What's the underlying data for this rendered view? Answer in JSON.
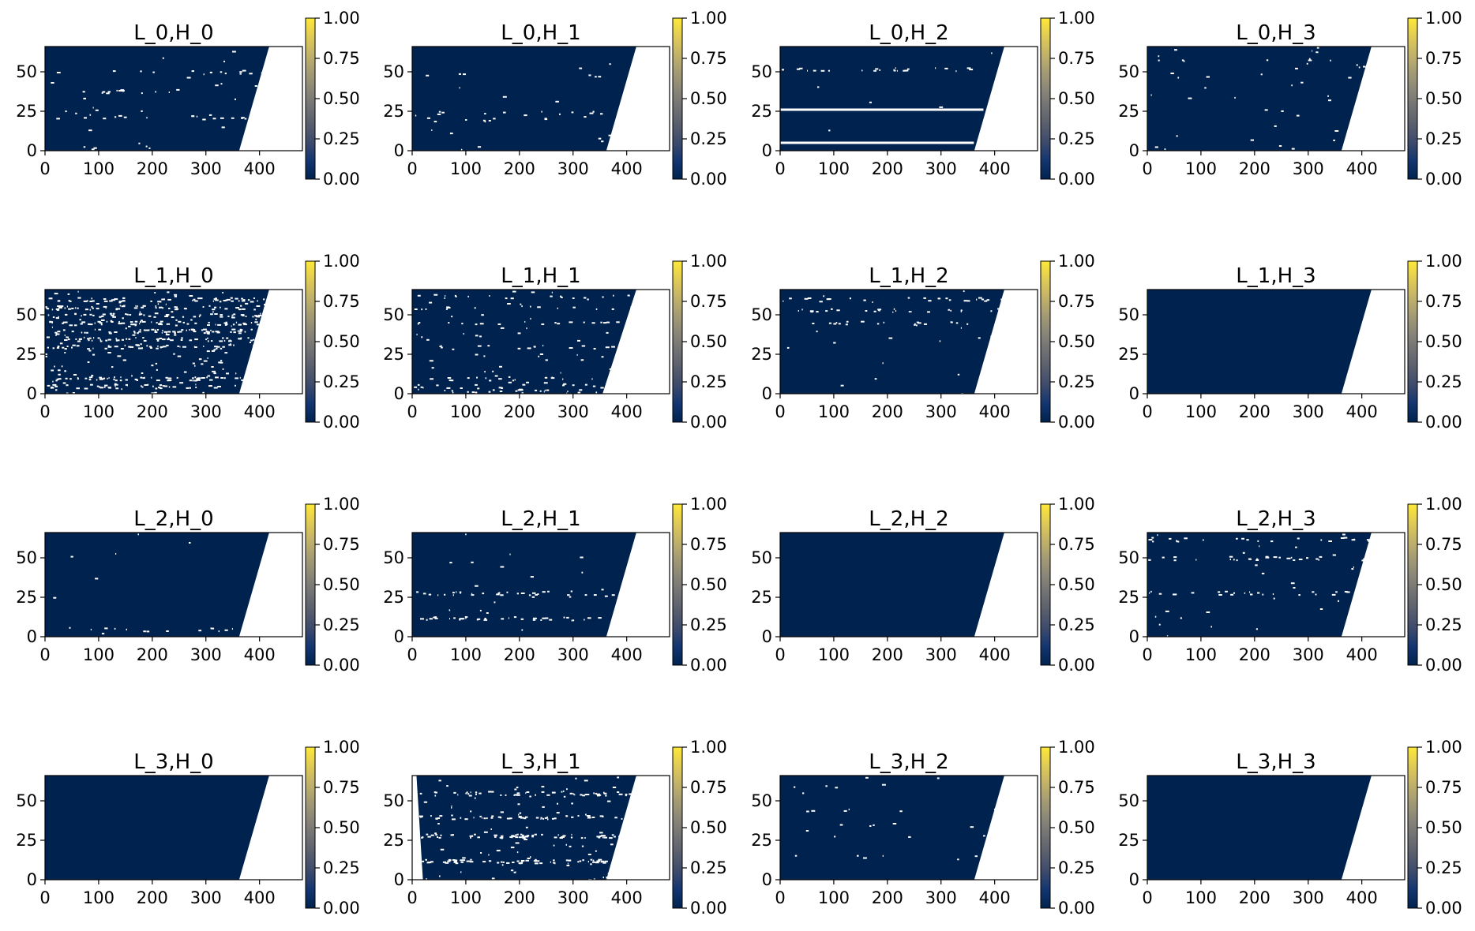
{
  "figure": {
    "description_type": "attention-heatmap-grid",
    "rows": 4,
    "cols": 4,
    "colormap": "cividis"
  },
  "colors": {
    "background_fill": "#00224e",
    "masked": "#ffffff",
    "speck": "#ffffff",
    "colorbar_stops": [
      "#00224e",
      "#123570",
      "#3b496c",
      "#575d6d",
      "#707173",
      "#8a8678",
      "#a59c74",
      "#c3b369",
      "#e1cc55",
      "#fee838"
    ]
  },
  "chart_data": [
    {
      "type": "heatmap",
      "title": "L_0,H_0",
      "xlim": [
        0,
        480
      ],
      "ylim": [
        0,
        66
      ],
      "xticks": [
        "0",
        "100",
        "200",
        "300",
        "400"
      ],
      "yticks": [
        "0",
        "25",
        "50"
      ],
      "colorbar": {
        "range": [
          0.0,
          1.0
        ],
        "ticks": [
          "0.00",
          "0.25",
          "0.50",
          "0.75",
          "1.00"
        ]
      },
      "mask": {
        "bottom_end": 362,
        "top_end": 418
      },
      "density": 0.05,
      "bands": [
        50,
        38,
        22
      ]
    },
    {
      "type": "heatmap",
      "title": "L_0,H_1",
      "xlim": [
        0,
        480
      ],
      "ylim": [
        0,
        66
      ],
      "xticks": [
        "0",
        "100",
        "200",
        "300",
        "400"
      ],
      "yticks": [
        "0",
        "25",
        "50"
      ],
      "colorbar": {
        "range": [
          0.0,
          1.0
        ],
        "ticks": [
          "0.00",
          "0.25",
          "0.50",
          "0.75",
          "1.00"
        ]
      },
      "mask": {
        "bottom_end": 362,
        "top_end": 418
      },
      "density": 0.03,
      "bands": [
        48,
        24,
        20
      ]
    },
    {
      "type": "heatmap",
      "title": "L_0,H_2",
      "xlim": [
        0,
        480
      ],
      "ylim": [
        0,
        66
      ],
      "xticks": [
        "0",
        "100",
        "200",
        "300",
        "400"
      ],
      "yticks": [
        "0",
        "25",
        "50"
      ],
      "colorbar": {
        "range": [
          0.0,
          1.0
        ],
        "ticks": [
          "0.00",
          "0.25",
          "0.50",
          "0.75",
          "1.00"
        ]
      },
      "mask": {
        "bottom_end": 362,
        "top_end": 418
      },
      "density": 0.02,
      "bands": [
        52
      ],
      "lines": [
        26,
        5
      ]
    },
    {
      "type": "heatmap",
      "title": "L_0,H_3",
      "xlim": [
        0,
        480
      ],
      "ylim": [
        0,
        66
      ],
      "xticks": [
        "0",
        "100",
        "200",
        "300",
        "400"
      ],
      "yticks": [
        "0",
        "25",
        "50"
      ],
      "colorbar": {
        "range": [
          0.0,
          1.0
        ],
        "ticks": [
          "0.00",
          "0.25",
          "0.50",
          "0.75",
          "1.00"
        ]
      },
      "mask": {
        "bottom_end": 362,
        "top_end": 418
      },
      "density": 0.03,
      "bands": []
    },
    {
      "type": "heatmap",
      "title": "L_1,H_0",
      "xlim": [
        0,
        480
      ],
      "ylim": [
        0,
        66
      ],
      "xticks": [
        "0",
        "100",
        "200",
        "300",
        "400"
      ],
      "yticks": [
        "0",
        "25",
        "50"
      ],
      "colorbar": {
        "range": [
          0.0,
          1.0
        ],
        "ticks": [
          "0.00",
          "0.25",
          "0.50",
          "0.75",
          "1.00"
        ]
      },
      "mask": {
        "bottom_end": 362,
        "top_end": 418
      },
      "density": 0.42,
      "bands": [
        60,
        55,
        50,
        45,
        40,
        35,
        30,
        10,
        5
      ]
    },
    {
      "type": "heatmap",
      "title": "L_1,H_1",
      "xlim": [
        0,
        480
      ],
      "ylim": [
        0,
        66
      ],
      "xticks": [
        "0",
        "100",
        "200",
        "300",
        "400"
      ],
      "yticks": [
        "0",
        "25",
        "50"
      ],
      "colorbar": {
        "range": [
          0.0,
          1.0
        ],
        "ticks": [
          "0.00",
          "0.25",
          "0.50",
          "0.75",
          "1.00"
        ]
      },
      "mask": {
        "bottom_end": 355,
        "top_end": 418
      },
      "density": 0.12,
      "bands": [
        62,
        55,
        45,
        30,
        10,
        5,
        2
      ]
    },
    {
      "type": "heatmap",
      "title": "L_1,H_2",
      "xlim": [
        0,
        480
      ],
      "ylim": [
        0,
        66
      ],
      "xticks": [
        "0",
        "100",
        "200",
        "300",
        "400"
      ],
      "yticks": [
        "0",
        "25",
        "50"
      ],
      "colorbar": {
        "range": [
          0.0,
          1.0
        ],
        "ticks": [
          "0.00",
          "0.25",
          "0.50",
          "0.75",
          "1.00"
        ]
      },
      "mask": {
        "bottom_end": 362,
        "top_end": 418
      },
      "density": 0.06,
      "bands": [
        60,
        53,
        45
      ]
    },
    {
      "type": "heatmap",
      "title": "L_1,H_3",
      "xlim": [
        0,
        480
      ],
      "ylim": [
        0,
        66
      ],
      "xticks": [
        "0",
        "100",
        "200",
        "300",
        "400"
      ],
      "yticks": [
        "0",
        "25",
        "50"
      ],
      "colorbar": {
        "range": [
          0.0,
          1.0
        ],
        "ticks": [
          "0.00",
          "0.25",
          "0.50",
          "0.75",
          "1.00"
        ]
      },
      "mask": {
        "bottom_end": 362,
        "top_end": 418
      },
      "density": 0.0,
      "bands": []
    },
    {
      "type": "heatmap",
      "title": "L_2,H_0",
      "xlim": [
        0,
        480
      ],
      "ylim": [
        0,
        66
      ],
      "xticks": [
        "0",
        "100",
        "200",
        "300",
        "400"
      ],
      "yticks": [
        "0",
        "25",
        "50"
      ],
      "colorbar": {
        "range": [
          0.0,
          1.0
        ],
        "ticks": [
          "0.00",
          "0.25",
          "0.50",
          "0.75",
          "1.00"
        ]
      },
      "mask": {
        "bottom_end": 362,
        "top_end": 418
      },
      "density": 0.015,
      "bands": [
        5
      ]
    },
    {
      "type": "heatmap",
      "title": "L_2,H_1",
      "xlim": [
        0,
        480
      ],
      "ylim": [
        0,
        66
      ],
      "xticks": [
        "0",
        "100",
        "200",
        "300",
        "400"
      ],
      "yticks": [
        "0",
        "25",
        "50"
      ],
      "colorbar": {
        "range": [
          0.0,
          1.0
        ],
        "ticks": [
          "0.00",
          "0.25",
          "0.50",
          "0.75",
          "1.00"
        ]
      },
      "mask": {
        "bottom_end": 362,
        "top_end": 418
      },
      "density": 0.06,
      "bands": [
        28,
        12
      ]
    },
    {
      "type": "heatmap",
      "title": "L_2,H_2",
      "xlim": [
        0,
        480
      ],
      "ylim": [
        0,
        66
      ],
      "xticks": [
        "0",
        "100",
        "200",
        "300",
        "400"
      ],
      "yticks": [
        "0",
        "25",
        "50"
      ],
      "colorbar": {
        "range": [
          0.0,
          1.0
        ],
        "ticks": [
          "0.00",
          "0.25",
          "0.50",
          "0.75",
          "1.00"
        ]
      },
      "mask": {
        "bottom_end": 362,
        "top_end": 418
      },
      "density": 0.0,
      "bands": []
    },
    {
      "type": "heatmap",
      "title": "L_2,H_3",
      "xlim": [
        0,
        480
      ],
      "ylim": [
        0,
        66
      ],
      "xticks": [
        "0",
        "100",
        "200",
        "300",
        "400"
      ],
      "yticks": [
        "0",
        "25",
        "50"
      ],
      "colorbar": {
        "range": [
          0.0,
          1.0
        ],
        "ticks": [
          "0.00",
          "0.25",
          "0.50",
          "0.75",
          "1.00"
        ]
      },
      "mask": {
        "bottom_end": 362,
        "top_end": 418
      },
      "density": 0.07,
      "bands": [
        62,
        50,
        28
      ]
    },
    {
      "type": "heatmap",
      "title": "L_3,H_0",
      "xlim": [
        0,
        480
      ],
      "ylim": [
        0,
        66
      ],
      "xticks": [
        "0",
        "100",
        "200",
        "300",
        "400"
      ],
      "yticks": [
        "0",
        "25",
        "50"
      ],
      "colorbar": {
        "range": [
          0.0,
          1.0
        ],
        "ticks": [
          "0.00",
          "0.25",
          "0.50",
          "0.75",
          "1.00"
        ]
      },
      "mask": {
        "bottom_end": 362,
        "top_end": 418
      },
      "density": 0.0,
      "bands": []
    },
    {
      "type": "heatmap",
      "title": "L_3,H_1",
      "xlim": [
        0,
        480
      ],
      "ylim": [
        0,
        66
      ],
      "xticks": [
        "0",
        "100",
        "200",
        "300",
        "400"
      ],
      "yticks": [
        "0",
        "25",
        "50"
      ],
      "colorbar": {
        "range": [
          0.0,
          1.0
        ],
        "ticks": [
          "0.00",
          "0.25",
          "0.50",
          "0.75",
          "1.00"
        ]
      },
      "mask": {
        "bottom_end": 362,
        "top_end": 418,
        "left_end": 20
      },
      "density": 0.22,
      "bands": [
        55,
        40,
        28,
        12
      ]
    },
    {
      "type": "heatmap",
      "title": "L_3,H_2",
      "xlim": [
        0,
        480
      ],
      "ylim": [
        0,
        66
      ],
      "xticks": [
        "0",
        "100",
        "200",
        "300",
        "400"
      ],
      "yticks": [
        "0",
        "25",
        "50"
      ],
      "colorbar": {
        "range": [
          0.0,
          1.0
        ],
        "ticks": [
          "0.00",
          "0.25",
          "0.50",
          "0.75",
          "1.00"
        ]
      },
      "mask": {
        "bottom_end": 362,
        "top_end": 418
      },
      "density": 0.02,
      "bands": [
        60,
        45,
        35,
        28,
        15
      ]
    },
    {
      "type": "heatmap",
      "title": "L_3,H_3",
      "xlim": [
        0,
        480
      ],
      "ylim": [
        0,
        66
      ],
      "xticks": [
        "0",
        "100",
        "200",
        "300",
        "400"
      ],
      "yticks": [
        "0",
        "25",
        "50"
      ],
      "colorbar": {
        "range": [
          0.0,
          1.0
        ],
        "ticks": [
          "0.00",
          "0.25",
          "0.50",
          "0.75",
          "1.00"
        ]
      },
      "mask": {
        "bottom_end": 362,
        "top_end": 418
      },
      "density": 0.0,
      "bands": []
    }
  ]
}
